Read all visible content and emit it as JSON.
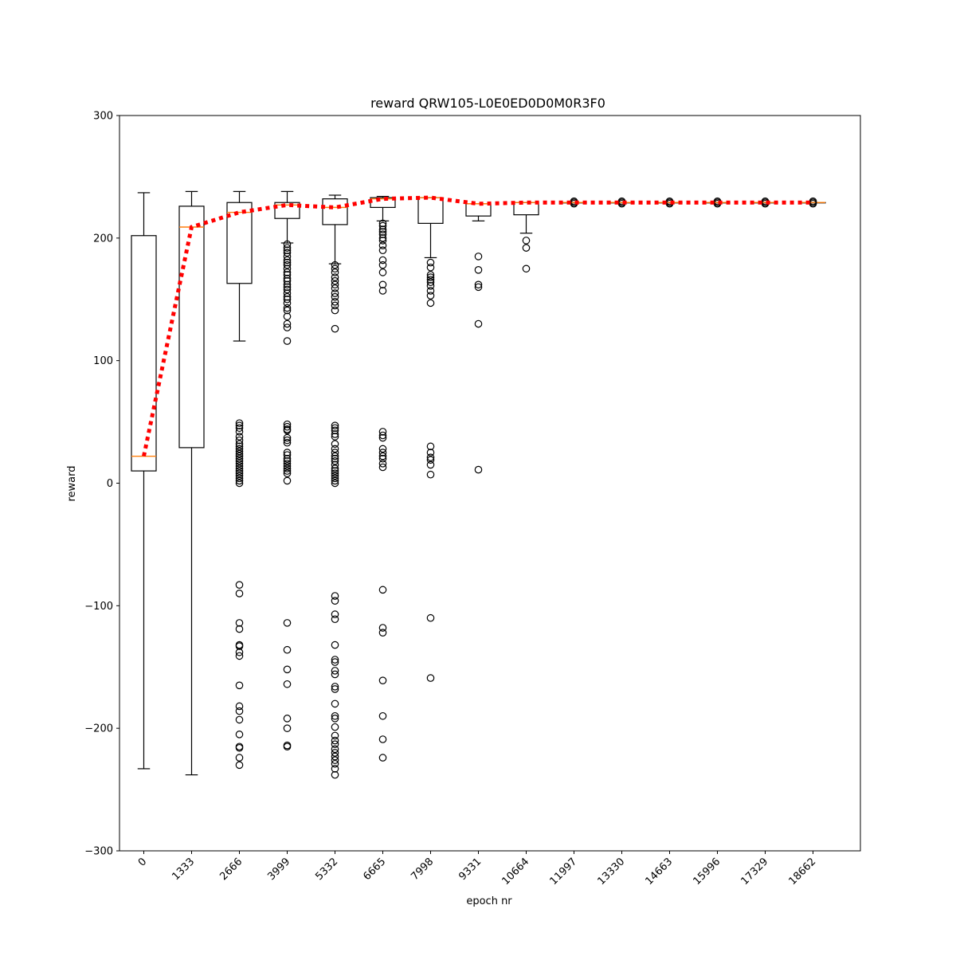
{
  "chart_data": {
    "type": "boxplot",
    "title": "reward QRW105-L0E0ED0D0M0R3F0",
    "xlabel": "epoch nr",
    "ylabel": "reward",
    "ylim": [
      -300,
      300
    ],
    "yticks": [
      -300,
      -200,
      -100,
      0,
      100,
      200,
      300
    ],
    "ytick_labels": [
      "−300",
      "−200",
      "−100",
      "0",
      "100",
      "200",
      "300"
    ],
    "categories": [
      "0",
      "1333",
      "2666",
      "3999",
      "5332",
      "6665",
      "7998",
      "9331",
      "10664",
      "11997",
      "13330",
      "14663",
      "15996",
      "17329",
      "18662"
    ],
    "boxes": [
      {
        "whisker_low": -233,
        "q1": 10,
        "median": 22,
        "q3": 202,
        "whisker_high": 237,
        "fliers": []
      },
      {
        "whisker_low": -238,
        "q1": 29,
        "median": 209,
        "q3": 226,
        "whisker_high": 238,
        "fliers": []
      },
      {
        "whisker_low": 116,
        "q1": 163,
        "median": 221,
        "q3": 229,
        "whisker_high": 238,
        "fliers": [
          49,
          47,
          45,
          42,
          38,
          35,
          32,
          30,
          28,
          26,
          24,
          22,
          20,
          18,
          16,
          14,
          12,
          10,
          8,
          6,
          4,
          2,
          0,
          -83,
          -90,
          -114,
          -119,
          -132,
          -133,
          -138,
          -141,
          -165,
          -182,
          -186,
          -193,
          -205,
          -215,
          -216,
          -224,
          -230
        ]
      },
      {
        "whisker_low": 196,
        "q1": 216,
        "median": 227,
        "q3": 229,
        "whisker_high": 238,
        "fliers": [
          195,
          192,
          190,
          188,
          185,
          182,
          180,
          178,
          175,
          172,
          170,
          167,
          165,
          162,
          160,
          158,
          155,
          152,
          150,
          147,
          143,
          141,
          136,
          130,
          127,
          116,
          48,
          46,
          44,
          43,
          37,
          35,
          33,
          25,
          23,
          20,
          18,
          16,
          14,
          12,
          10,
          8,
          2,
          -114,
          -136,
          -152,
          -164,
          -192,
          -200,
          -214,
          -215
        ]
      },
      {
        "whisker_low": 179,
        "q1": 211,
        "median": 225,
        "q3": 232,
        "whisker_high": 235,
        "fliers": [
          178,
          175,
          172,
          168,
          165,
          162,
          159,
          155,
          152,
          148,
          145,
          141,
          126,
          47,
          45,
          43,
          40,
          38,
          32,
          28,
          25,
          22,
          20,
          18,
          15,
          12,
          10,
          8,
          6,
          4,
          2,
          0,
          -92,
          -96,
          -107,
          -111,
          -132,
          -144,
          -146,
          -153,
          -156,
          -166,
          -168,
          -180,
          -190,
          -192,
          -199,
          -206,
          -210,
          -213,
          -217,
          -220,
          -223,
          -226,
          -229,
          -233,
          -238
        ]
      },
      {
        "whisker_low": 214,
        "q1": 225,
        "median": 232,
        "q3": 233,
        "whisker_high": 234,
        "fliers": [
          212,
          210,
          207,
          205,
          203,
          200,
          198,
          194,
          190,
          182,
          178,
          172,
          162,
          157,
          42,
          39,
          37,
          28,
          25,
          22,
          20,
          16,
          13,
          -87,
          -118,
          -122,
          -161,
          -190,
          -209,
          -224
        ]
      },
      {
        "whisker_low": 184,
        "q1": 212,
        "median": 233,
        "q3": 233,
        "whisker_high": 233,
        "fliers": [
          180,
          176,
          170,
          168,
          166,
          164,
          161,
          157,
          153,
          147,
          30,
          25,
          21,
          19,
          15,
          7,
          -110,
          -159
        ]
      },
      {
        "whisker_low": 214,
        "q1": 218,
        "median": 228,
        "q3": 228,
        "whisker_high": 228,
        "fliers": [
          185,
          174,
          162,
          160,
          130,
          11
        ]
      },
      {
        "whisker_low": 204,
        "q1": 219,
        "median": 229,
        "q3": 229,
        "whisker_high": 229,
        "fliers": [
          198,
          192,
          175
        ]
      },
      {
        "whisker_low": 229,
        "q1": 229,
        "median": 229,
        "q3": 229,
        "whisker_high": 229,
        "fliers": [
          228,
          229,
          230
        ]
      },
      {
        "whisker_low": 229,
        "q1": 229,
        "median": 229,
        "q3": 229,
        "whisker_high": 229,
        "fliers": [
          228,
          229,
          230
        ]
      },
      {
        "whisker_low": 229,
        "q1": 229,
        "median": 229,
        "q3": 229,
        "whisker_high": 229,
        "fliers": [
          228,
          229,
          230
        ]
      },
      {
        "whisker_low": 229,
        "q1": 229,
        "median": 229,
        "q3": 229,
        "whisker_high": 229,
        "fliers": [
          228,
          229,
          230
        ]
      },
      {
        "whisker_low": 229,
        "q1": 229,
        "median": 229,
        "q3": 229,
        "whisker_high": 229,
        "fliers": [
          228,
          229,
          230
        ]
      },
      {
        "whisker_low": 229,
        "q1": 229,
        "median": 229,
        "q3": 229,
        "whisker_high": 229,
        "fliers": [
          228,
          229,
          230
        ]
      }
    ],
    "mean_series": {
      "values": [
        22,
        209,
        221,
        227,
        225,
        232,
        233,
        228,
        229,
        229,
        229,
        229,
        229,
        229,
        229
      ],
      "color": "#ff0000",
      "style": "dotted"
    },
    "colors": {
      "box": "#000000",
      "median": "#ff7f0e",
      "mean_line": "#ff0000"
    },
    "grid": false
  }
}
